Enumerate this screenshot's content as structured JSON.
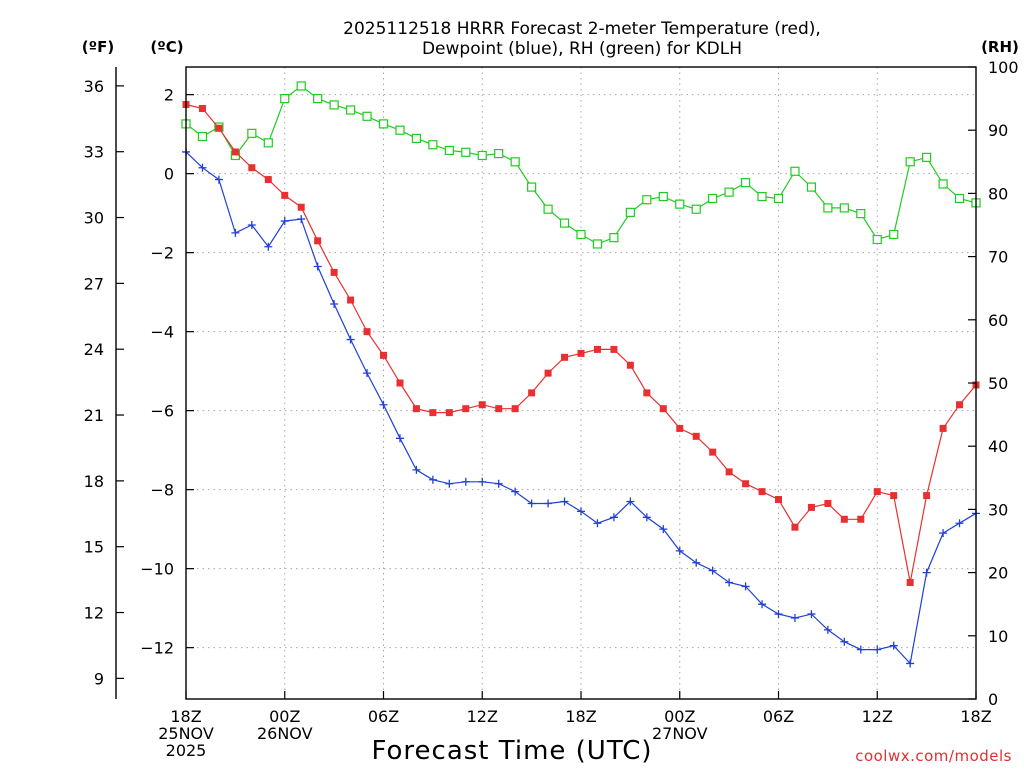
{
  "chart_data": {
    "type": "line",
    "title_line1": "2025112518 HRRR Forecast 2-meter Temperature (red),",
    "title_line2": "Dewpoint (blue), RH (green) for KDLH",
    "xlabel": "Forecast Time (UTC)",
    "credit": "coolwx.com/models",
    "left_outer_unit": "(ºF)",
    "left_inner_unit": "(ºC)",
    "right_unit": "(RH)",
    "f_ticks": [
      "36",
      "33",
      "30",
      "27",
      "24",
      "21",
      "18",
      "15",
      "12",
      "9"
    ],
    "c_ticks": [
      "2",
      "0",
      "−2",
      "−4",
      "−6",
      "−8",
      "−10",
      "−12"
    ],
    "rh_ticks": [
      "100",
      "90",
      "80",
      "70",
      "60",
      "50",
      "40",
      "30",
      "20",
      "10",
      "0"
    ],
    "x_ticks": [
      {
        "hour": 0,
        "line1": "18Z",
        "line2": "25NOV",
        "line3": "2025"
      },
      {
        "hour": 6,
        "line1": "00Z",
        "line2": "26NOV",
        "line3": ""
      },
      {
        "hour": 12,
        "line1": "06Z",
        "line2": "",
        "line3": ""
      },
      {
        "hour": 18,
        "line1": "12Z",
        "line2": "",
        "line3": ""
      },
      {
        "hour": 24,
        "line1": "18Z",
        "line2": "",
        "line3": ""
      },
      {
        "hour": 30,
        "line1": "00Z",
        "line2": "27NOV",
        "line3": ""
      },
      {
        "hour": 36,
        "line1": "06Z",
        "line2": "",
        "line3": ""
      },
      {
        "hour": 42,
        "line1": "12Z",
        "line2": "",
        "line3": ""
      },
      {
        "hour": 48,
        "line1": "18Z",
        "line2": "",
        "line3": ""
      }
    ],
    "x_range_hours": [
      0,
      48
    ],
    "c_range": [
      -13.3,
      2.7
    ],
    "rh_range": [
      0,
      100
    ],
    "series": [
      {
        "name": "2-meter Temperature (red)",
        "units": "C",
        "color": "#e83030",
        "marker": "filled-square",
        "values": [
          1.75,
          1.65,
          1.15,
          0.55,
          0.15,
          -0.15,
          -0.55,
          -0.85,
          -1.7,
          -2.5,
          -3.2,
          -4.0,
          -4.6,
          -5.3,
          -5.95,
          -6.05,
          -6.05,
          -5.95,
          -5.85,
          -5.95,
          -5.95,
          -5.55,
          -5.05,
          -4.65,
          -4.55,
          -4.45,
          -4.45,
          -4.85,
          -5.55,
          -5.95,
          -6.45,
          -6.65,
          -7.05,
          -7.55,
          -7.85,
          -8.05,
          -8.25,
          -8.95,
          -8.45,
          -8.35,
          -8.75,
          -8.75,
          -8.05,
          -8.15,
          -10.35,
          -8.15,
          -6.45,
          -5.85,
          -5.35
        ]
      },
      {
        "name": "Dewpoint (blue)",
        "units": "C",
        "color": "#2040d8",
        "marker": "plus",
        "values": [
          0.55,
          0.15,
          -0.15,
          -1.5,
          -1.3,
          -1.85,
          -1.2,
          -1.15,
          -2.35,
          -3.3,
          -4.2,
          -5.05,
          -5.85,
          -6.7,
          -7.5,
          -7.75,
          -7.85,
          -7.8,
          -7.8,
          -7.85,
          -8.05,
          -8.35,
          -8.35,
          -8.3,
          -8.55,
          -8.85,
          -8.7,
          -8.3,
          -8.7,
          -9.0,
          -9.55,
          -9.85,
          -10.05,
          -10.35,
          -10.45,
          -10.9,
          -11.15,
          -11.25,
          -11.15,
          -11.55,
          -11.85,
          -12.05,
          -12.05,
          -11.95,
          -12.4,
          -10.1,
          -9.1,
          -8.85,
          -8.6
        ]
      },
      {
        "name": "RH (green)",
        "units": "%",
        "color": "#20cc20",
        "marker": "open-square",
        "values": [
          91,
          89,
          90.5,
          86,
          89.5,
          88,
          95,
          97,
          95,
          94,
          93.2,
          92.2,
          91,
          90,
          88.7,
          87.7,
          86.8,
          86.5,
          86,
          86.3,
          85,
          81,
          77.5,
          75.3,
          73.5,
          72,
          73,
          77,
          79,
          79.5,
          78.3,
          77.5,
          79.2,
          80.2,
          81.7,
          79.5,
          79.2,
          83.5,
          81,
          77.7,
          77.7,
          76.8,
          72.7,
          73.5,
          85,
          85.7,
          81.5,
          79.2,
          78.5
        ]
      }
    ]
  }
}
